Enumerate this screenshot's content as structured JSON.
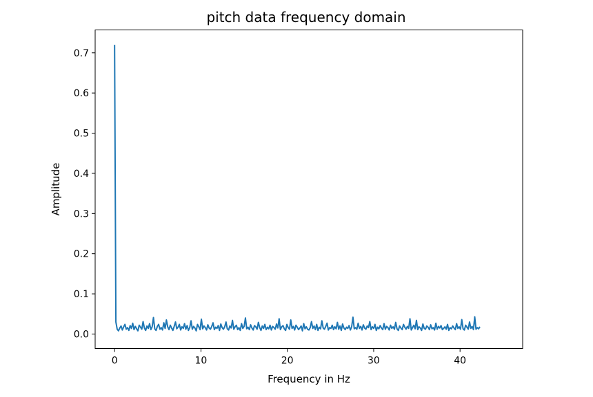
{
  "chart_data": {
    "type": "line",
    "title": "pitch data frequency domain",
    "xlabel": "Frequency in Hz",
    "ylabel": "Amplitude",
    "xlim": [
      -2.25,
      47.25
    ],
    "ylim": [
      -0.036,
      0.757
    ],
    "xticks": [
      0,
      10,
      20,
      30,
      40
    ],
    "yticks": [
      0.0,
      0.1,
      0.2,
      0.3,
      0.4,
      0.5,
      0.6,
      0.7
    ],
    "grid": false,
    "legend": "none",
    "series": [
      {
        "color": "#1f77b4",
        "x_start": 0,
        "x_step": 0.15,
        "y": [
          0.72,
          0.03,
          0.012,
          0.008,
          0.015,
          0.02,
          0.01,
          0.018,
          0.024,
          0.012,
          0.016,
          0.009,
          0.021,
          0.014,
          0.027,
          0.011,
          0.019,
          0.013,
          0.008,
          0.022,
          0.017,
          0.012,
          0.031,
          0.015,
          0.009,
          0.02,
          0.014,
          0.026,
          0.011,
          0.018,
          0.041,
          0.013,
          0.009,
          0.019,
          0.024,
          0.012,
          0.016,
          0.01,
          0.028,
          0.014,
          0.035,
          0.018,
          0.011,
          0.022,
          0.015,
          0.009,
          0.019,
          0.03,
          0.013,
          0.017,
          0.024,
          0.01,
          0.018,
          0.014,
          0.026,
          0.012,
          0.021,
          0.009,
          0.016,
          0.033,
          0.012,
          0.019,
          0.015,
          0.008,
          0.024,
          0.018,
          0.011,
          0.037,
          0.013,
          0.02,
          0.016,
          0.01,
          0.023,
          0.015,
          0.012,
          0.019,
          0.028,
          0.011,
          0.017,
          0.014,
          0.021,
          0.009,
          0.025,
          0.016,
          0.012,
          0.018,
          0.03,
          0.013,
          0.01,
          0.02,
          0.015,
          0.034,
          0.012,
          0.018,
          0.022,
          0.011,
          0.016,
          0.009,
          0.026,
          0.014,
          0.019,
          0.04,
          0.013,
          0.017,
          0.011,
          0.023,
          0.015,
          0.01,
          0.021,
          0.018,
          0.012,
          0.029,
          0.016,
          0.009,
          0.02,
          0.014,
          0.024,
          0.011,
          0.017,
          0.013,
          0.022,
          0.01,
          0.019,
          0.016,
          0.012,
          0.025,
          0.015,
          0.038,
          0.011,
          0.018,
          0.021,
          0.013,
          0.009,
          0.024,
          0.016,
          0.012,
          0.035,
          0.014,
          0.019,
          0.01,
          0.022,
          0.017,
          0.011,
          0.015,
          0.02,
          0.008,
          0.026,
          0.013,
          0.018,
          0.012,
          0.01,
          0.016,
          0.031,
          0.014,
          0.02,
          0.011,
          0.024,
          0.009,
          0.017,
          0.013,
          0.033,
          0.015,
          0.012,
          0.019,
          0.027,
          0.01,
          0.016,
          0.014,
          0.022,
          0.011,
          0.018,
          0.013,
          0.029,
          0.012,
          0.02,
          0.009,
          0.025,
          0.015,
          0.011,
          0.017,
          0.014,
          0.021,
          0.01,
          0.018,
          0.042,
          0.013,
          0.016,
          0.012,
          0.027,
          0.014,
          0.019,
          0.01,
          0.023,
          0.015,
          0.012,
          0.02,
          0.016,
          0.031,
          0.011,
          0.018,
          0.014,
          0.024,
          0.009,
          0.017,
          0.013,
          0.021,
          0.015,
          0.011,
          0.026,
          0.012,
          0.019,
          0.016,
          0.01,
          0.022,
          0.014,
          0.018,
          0.012,
          0.029,
          0.013,
          0.009,
          0.02,
          0.015,
          0.011,
          0.024,
          0.017,
          0.012,
          0.019,
          0.014,
          0.038,
          0.01,
          0.016,
          0.022,
          0.013,
          0.034,
          0.011,
          0.018,
          0.015,
          0.009,
          0.025,
          0.014,
          0.012,
          0.02,
          0.017,
          0.011,
          0.023,
          0.013,
          0.016,
          0.01,
          0.027,
          0.012,
          0.019,
          0.015,
          0.021,
          0.011,
          0.014,
          0.018,
          0.012,
          0.024,
          0.009,
          0.016,
          0.013,
          0.02,
          0.015,
          0.011,
          0.026,
          0.014,
          0.018,
          0.012,
          0.036,
          0.013,
          0.01,
          0.022,
          0.017,
          0.012,
          0.03,
          0.014,
          0.019,
          0.011,
          0.043,
          0.012,
          0.016,
          0.013,
          0.018
        ]
      }
    ]
  }
}
